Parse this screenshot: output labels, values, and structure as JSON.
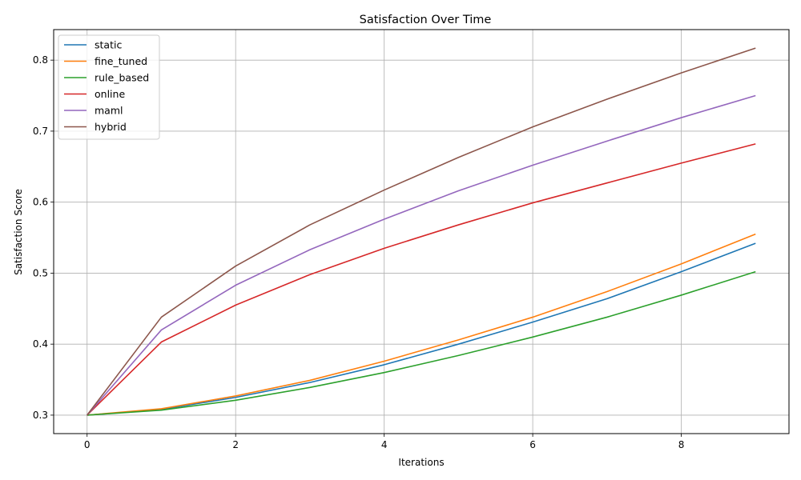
{
  "chart_data": {
    "type": "line",
    "title": "Satisfaction Over Time",
    "xlabel": "Iterations",
    "ylabel": "Satisfaction Score",
    "x": [
      0,
      1,
      2,
      3,
      4,
      5,
      6,
      7,
      8,
      9
    ],
    "xlim": [
      -0.45,
      9.45
    ],
    "ylim": [
      0.274,
      0.843
    ],
    "xticks": [
      0,
      2,
      4,
      6,
      8
    ],
    "yticks": [
      0.3,
      0.4,
      0.5,
      0.6,
      0.7,
      0.8
    ],
    "grid": true,
    "legend_position": "top-left",
    "series": [
      {
        "name": "static",
        "color": "#1f77b4",
        "values": [
          0.3,
          0.308,
          0.325,
          0.346,
          0.371,
          0.4,
          0.431,
          0.464,
          0.502,
          0.542
        ]
      },
      {
        "name": "fine_tuned",
        "color": "#ff7f0e",
        "values": [
          0.3,
          0.309,
          0.327,
          0.349,
          0.376,
          0.406,
          0.438,
          0.474,
          0.513,
          0.555
        ]
      },
      {
        "name": "rule_based",
        "color": "#2ca02c",
        "values": [
          0.3,
          0.307,
          0.321,
          0.339,
          0.36,
          0.384,
          0.41,
          0.438,
          0.469,
          0.502
        ]
      },
      {
        "name": "online",
        "color": "#d62728",
        "values": [
          0.3,
          0.403,
          0.455,
          0.498,
          0.535,
          0.568,
          0.599,
          0.627,
          0.655,
          0.682
        ]
      },
      {
        "name": "maml",
        "color": "#9467bd",
        "values": [
          0.3,
          0.42,
          0.483,
          0.533,
          0.576,
          0.616,
          0.652,
          0.686,
          0.719,
          0.75
        ]
      },
      {
        "name": "hybrid",
        "color": "#8c564b",
        "values": [
          0.3,
          0.438,
          0.51,
          0.568,
          0.617,
          0.663,
          0.706,
          0.745,
          0.782,
          0.817
        ]
      }
    ]
  }
}
